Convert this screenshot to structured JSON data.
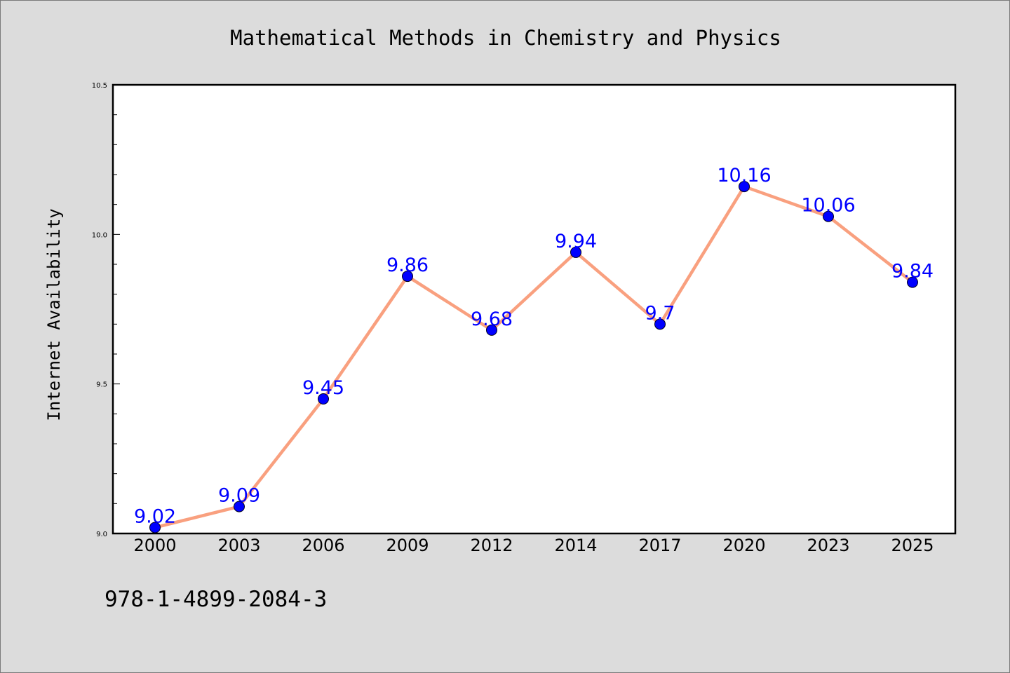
{
  "chart_data": {
    "type": "line",
    "title": "Mathematical Methods in Chemistry and Physics",
    "xlabel": "",
    "ylabel": "Internet Availability",
    "categories": [
      "2000",
      "2003",
      "2006",
      "2009",
      "2012",
      "2014",
      "2017",
      "2020",
      "2023",
      "2025"
    ],
    "series": [
      {
        "values": [
          9.02,
          9.09,
          9.45,
          9.86,
          9.68,
          9.94,
          9.7,
          10.16,
          10.06,
          9.84
        ],
        "data_labels": [
          "9.02",
          "9.09",
          "9.45",
          "9.86",
          "9.68",
          "9.94",
          "9.7",
          "10.16",
          "10.06",
          "9.84"
        ],
        "line_color": "#f9a07f",
        "marker_color": "#0000ff",
        "label_color": "#0000ff"
      }
    ],
    "ylim": [
      9.0,
      10.5
    ],
    "yticks": [
      "9.0",
      "9.5",
      "10.0",
      "10.5"
    ],
    "grid": false,
    "legend": "none"
  },
  "footer": {
    "isbn": "978-1-4899-2084-3"
  },
  "colors": {
    "background": "#dcdcdc",
    "plot_background": "#ffffff"
  }
}
